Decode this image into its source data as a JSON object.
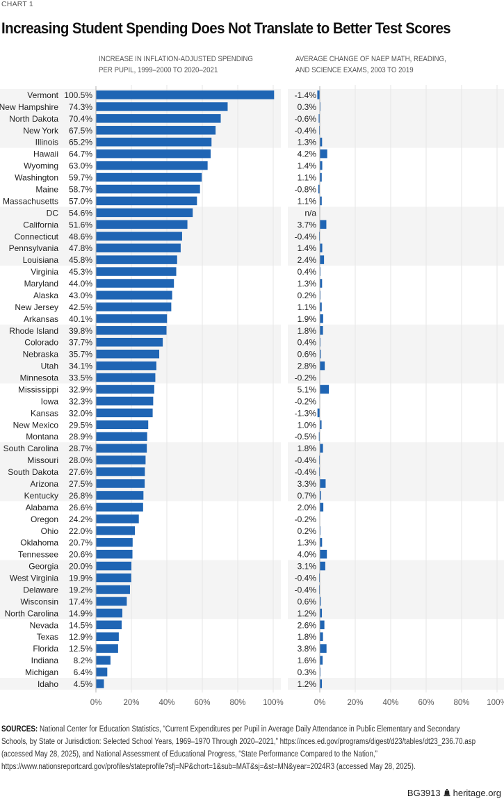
{
  "header": {
    "kicker": "CHART 1",
    "title": "Increasing Student Spending Does Not Translate to Better Test Scores"
  },
  "chart_data": [
    {
      "type": "bar",
      "orientation": "horizontal",
      "title": "INCREASE IN INFLATION-ADJUSTED SPENDING PER PUPIL, 1999–2000 TO 2020–2021",
      "title_lines": [
        "INCREASE IN INFLATION-ADJUSTED SPENDING",
        "PER PUPIL, 1999–2000 TO 2020–2021"
      ],
      "xlabel": "",
      "xlim": [
        0,
        100
      ],
      "xticks": [
        "0%",
        "20%",
        "40%",
        "60%",
        "80%",
        "100%"
      ],
      "grid": true,
      "categories": [
        "Vermont",
        "New Hampshire",
        "North Dakota",
        "New York",
        "Illinois",
        "Hawaii",
        "Wyoming",
        "Washington",
        "Maine",
        "Massachusetts",
        "DC",
        "California",
        "Connecticut",
        "Pennsylvania",
        "Louisiana",
        "Virginia",
        "Maryland",
        "Alaska",
        "New Jersey",
        "Arkansas",
        "Rhode Island",
        "Colorado",
        "Nebraska",
        "Utah",
        "Minnesota",
        "Mississippi",
        "Iowa",
        "Kansas",
        "New Mexico",
        "Montana",
        "South Carolina",
        "Missouri",
        "South Dakota",
        "Arizona",
        "Kentucky",
        "Alabama",
        "Oregon",
        "Ohio",
        "Oklahoma",
        "Tennessee",
        "Georgia",
        "West Virginia",
        "Delaware",
        "Wisconsin",
        "North Carolina",
        "Nevada",
        "Texas",
        "Florida",
        "Indiana",
        "Michigan",
        "Idaho"
      ],
      "values": [
        100.5,
        74.3,
        70.4,
        67.5,
        65.2,
        64.7,
        63.0,
        59.7,
        58.7,
        57.0,
        54.6,
        51.6,
        48.6,
        47.8,
        45.8,
        45.3,
        44.0,
        43.0,
        42.5,
        40.1,
        39.8,
        37.7,
        35.7,
        34.1,
        33.5,
        32.9,
        32.3,
        32.0,
        29.5,
        28.9,
        28.7,
        28.0,
        27.6,
        27.5,
        26.8,
        26.6,
        24.2,
        22.0,
        20.7,
        20.6,
        20.0,
        19.9,
        19.2,
        17.4,
        14.9,
        14.5,
        12.9,
        12.5,
        8.2,
        6.4,
        4.5
      ],
      "labels": [
        "100.5%",
        "74.3%",
        "70.4%",
        "67.5%",
        "65.2%",
        "64.7%",
        "63.0%",
        "59.7%",
        "58.7%",
        "57.0%",
        "54.6%",
        "51.6%",
        "48.6%",
        "47.8%",
        "45.8%",
        "45.3%",
        "44.0%",
        "43.0%",
        "42.5%",
        "40.1%",
        "39.8%",
        "37.7%",
        "35.7%",
        "34.1%",
        "33.5%",
        "32.9%",
        "32.3%",
        "32.0%",
        "29.5%",
        "28.9%",
        "28.7%",
        "28.0%",
        "27.6%",
        "27.5%",
        "26.8%",
        "26.6%",
        "24.2%",
        "22.0%",
        "20.7%",
        "20.6%",
        "20.0%",
        "19.9%",
        "19.2%",
        "17.4%",
        "14.9%",
        "14.5%",
        "12.9%",
        "12.5%",
        "8.2%",
        "6.4%",
        "4.5%"
      ],
      "color": "#1f65b4"
    },
    {
      "type": "bar",
      "orientation": "horizontal",
      "title": "AVERAGE CHANGE OF NAEP MATH, READING, AND SCIENCE EXAMS, 2003 TO 2019",
      "title_lines": [
        "AVERAGE CHANGE OF NAEP MATH, READING,",
        "AND SCIENCE EXAMS, 2003 TO 2019"
      ],
      "xlabel": "",
      "xlim": [
        0,
        100
      ],
      "xticks": [
        "0%",
        "20%",
        "40%",
        "60%",
        "80%",
        "100%"
      ],
      "grid": true,
      "categories": [
        "Vermont",
        "New Hampshire",
        "North Dakota",
        "New York",
        "Illinois",
        "Hawaii",
        "Wyoming",
        "Washington",
        "Maine",
        "Massachusetts",
        "DC",
        "California",
        "Connecticut",
        "Pennsylvania",
        "Louisiana",
        "Virginia",
        "Maryland",
        "Alaska",
        "New Jersey",
        "Arkansas",
        "Rhode Island",
        "Colorado",
        "Nebraska",
        "Utah",
        "Minnesota",
        "Mississippi",
        "Iowa",
        "Kansas",
        "New Mexico",
        "Montana",
        "South Carolina",
        "Missouri",
        "South Dakota",
        "Arizona",
        "Kentucky",
        "Alabama",
        "Oregon",
        "Ohio",
        "Oklahoma",
        "Tennessee",
        "Georgia",
        "West Virginia",
        "Delaware",
        "Wisconsin",
        "North Carolina",
        "Nevada",
        "Texas",
        "Florida",
        "Indiana",
        "Michigan",
        "Idaho"
      ],
      "values": [
        -1.4,
        0.3,
        -0.6,
        -0.4,
        1.3,
        4.2,
        1.4,
        1.1,
        -0.8,
        1.1,
        null,
        3.7,
        -0.4,
        1.4,
        2.4,
        0.4,
        1.3,
        0.2,
        1.1,
        1.9,
        1.8,
        0.4,
        0.6,
        2.8,
        -0.2,
        5.1,
        -0.2,
        -1.3,
        1.0,
        -0.5,
        1.8,
        -0.4,
        -0.4,
        3.3,
        0.7,
        2.0,
        -0.2,
        0.2,
        1.3,
        4.0,
        3.1,
        -0.4,
        -0.4,
        0.6,
        1.2,
        2.6,
        1.8,
        3.8,
        1.6,
        0.3,
        1.2
      ],
      "labels": [
        "-1.4%",
        "0.3%",
        "-0.6%",
        "-0.4%",
        "1.3%",
        "4.2%",
        "1.4%",
        "1.1%",
        "-0.8%",
        "1.1%",
        "n/a",
        "3.7%",
        "-0.4%",
        "1.4%",
        "2.4%",
        "0.4%",
        "1.3%",
        "0.2%",
        "1.1%",
        "1.9%",
        "1.8%",
        "0.4%",
        "0.6%",
        "2.8%",
        "-0.2%",
        "5.1%",
        "-0.2%",
        "-1.3%",
        "1.0%",
        "-0.5%",
        "1.8%",
        "-0.4%",
        "-0.4%",
        "3.3%",
        "0.7%",
        "2.0%",
        "-0.2%",
        "0.2%",
        "1.3%",
        "4.0%",
        "3.1%",
        "-0.4%",
        "-0.4%",
        "0.6%",
        "1.2%",
        "2.6%",
        "1.8%",
        "3.8%",
        "1.6%",
        "0.3%",
        "1.2%"
      ],
      "color": "#1f65b4"
    }
  ],
  "style": {
    "bar_color": "#1f65b4",
    "band_color": "#f4f4f4",
    "grid_color": "#e6e6e6",
    "axis_color": "#b0b0b0"
  },
  "sources": {
    "label": "SOURCES:",
    "text": "National Center for Education Statistics, “Current Expenditures per Pupil in Average Daily Attendance in Public Elementary and Secondary Schools, by State or Jurisdiction: Selected School Years, 1969–1970 Through 2020–2021,” https://nces.ed.gov/programs/digest/d23/tables/dt23_236.70.asp (accessed May 28, 2025), and National Assessment of Educational Progress, “State Performance Compared to the Nation,” https://www.nationsreportcard.gov/profiles/stateprofile?sfj=NP&chort=1&sub=MAT&sj=&st=MN&year=2024R3 (accessed May 28, 2025)."
  },
  "footer": {
    "code": "BG3913",
    "site": "heritage.org",
    "icon": "liberty-bell-icon"
  }
}
